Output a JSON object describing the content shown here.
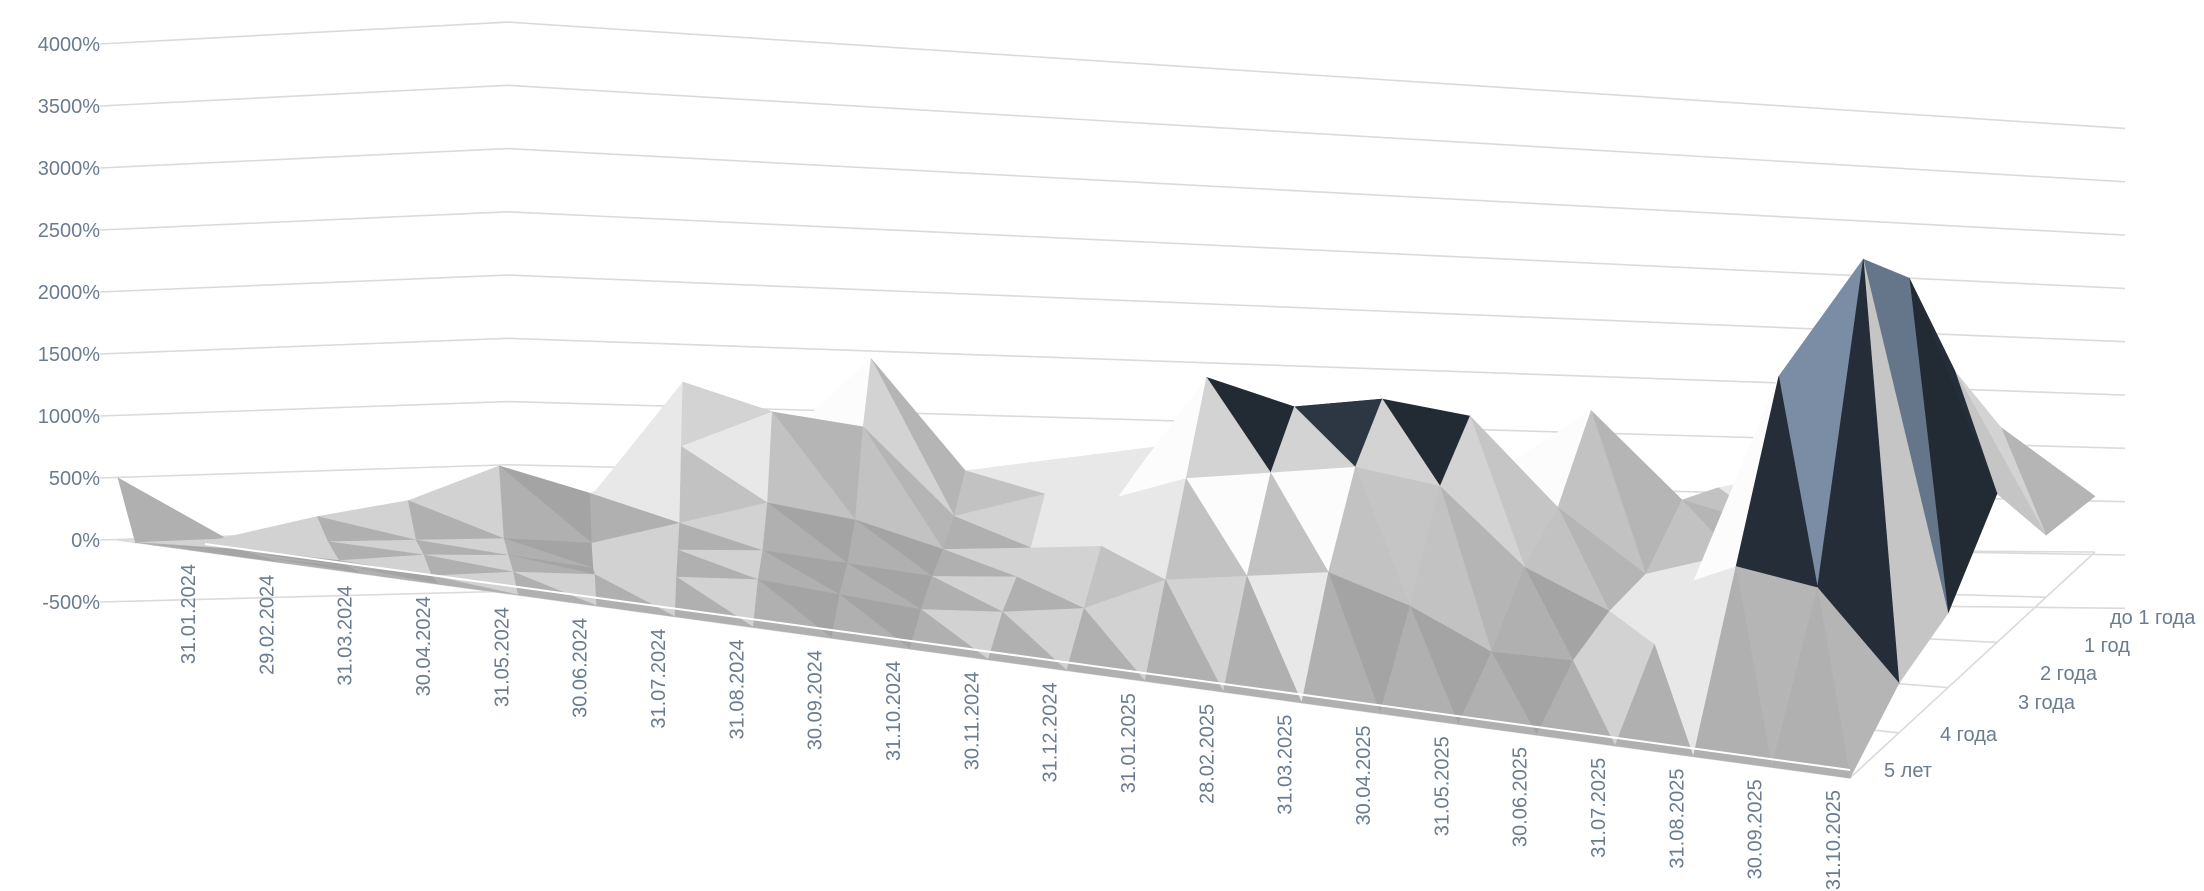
{
  "chart_data": {
    "type": "surface-3d",
    "title": "",
    "x": [
      "31.01.2024",
      "29.02.2024",
      "31.03.2024",
      "30.04.2024",
      "31.05.2024",
      "30.06.2024",
      "31.07.2024",
      "31.08.2024",
      "30.09.2024",
      "31.10.2024",
      "30.11.2024",
      "31.12.2024",
      "31.01.2025",
      "28.02.2025",
      "31.03.2025",
      "30.04.2025",
      "31.05.2025",
      "30.06.2025",
      "31.07.2025",
      "31.08.2025",
      "30.09.2025",
      "31.10.2025"
    ],
    "y": [
      "до 1 года",
      "1 год",
      "2 года",
      "3 года",
      "4 года",
      "5 лет"
    ],
    "zlim": [
      -500,
      4000
    ],
    "zticks": [
      "-500%",
      "0%",
      "500%",
      "1000%",
      "1500%",
      "2000%",
      "2500%",
      "3000%",
      "3500%",
      "4000%"
    ],
    "grid": true,
    "values": [
      [
        500,
        0,
        150,
        300,
        600,
        350,
        1300,
        800,
        1500,
        600,
        700,
        800,
        900,
        500,
        700,
        250,
        200,
        500,
        650,
        300,
        1000,
        450
      ],
      [
        0,
        50,
        250,
        400,
        700,
        500,
        900,
        1200,
        1100,
        400,
        600,
        800,
        1000,
        1200,
        1000,
        900,
        1400,
        700,
        500,
        800,
        1800,
        500
      ],
      [
        0,
        0,
        100,
        150,
        200,
        200,
        400,
        600,
        500,
        300,
        350,
        800,
        1800,
        1600,
        1700,
        1600,
        900,
        400,
        600,
        1300,
        2900,
        1200
      ],
      [
        0,
        0,
        0,
        100,
        150,
        100,
        300,
        350,
        300,
        250,
        300,
        600,
        1200,
        1300,
        1400,
        1300,
        700,
        400,
        700,
        2400,
        3400,
        600
      ],
      [
        0,
        0,
        0,
        0,
        100,
        150,
        200,
        250,
        200,
        150,
        200,
        300,
        600,
        700,
        800,
        600,
        300,
        300,
        500,
        1200,
        1100,
        400
      ],
      [
        0,
        0,
        0,
        0,
        0,
        0,
        0,
        0,
        0,
        0,
        0,
        0,
        0,
        0,
        0,
        0,
        0,
        0,
        0,
        0,
        0,
        0
      ]
    ],
    "band_colors": {
      "below_0": "#ff0a0a",
      "0-500": "#c8c8c8",
      "500-1000": "#dddddd",
      "1000-1500": "#f0f0f0",
      "1500-2000": "#2a3440",
      "2000-2500": "#74869d",
      "2500-3000": "#b7cfea",
      "3000-3500": "#b30000",
      "3500-4000": "#7d8589"
    }
  }
}
